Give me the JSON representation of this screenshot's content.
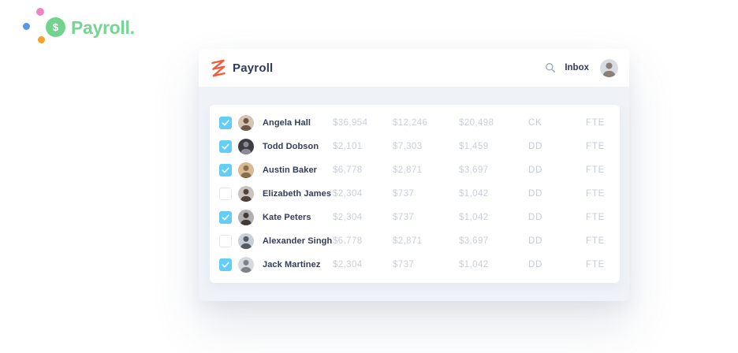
{
  "brand": {
    "name": "Payroll.",
    "dollar_symbol": "$",
    "badge_color": "#72d48c",
    "text_color": "#76d592",
    "dots": [
      {
        "name": "pink-dot",
        "color": "#ef83c3"
      },
      {
        "name": "blue-dot",
        "color": "#5596ea"
      },
      {
        "name": "orange-dot",
        "color": "#f7a128"
      }
    ]
  },
  "app": {
    "header": {
      "title": "Payroll",
      "logo_color": "#f15b40",
      "inbox_label": "Inbox",
      "search_icon_color": "#9ba6b4",
      "avatar_colors": {
        "bg": "#d9dde3",
        "fg": "#8c7f76"
      }
    },
    "table": {
      "rows": [
        {
          "checked": true,
          "name": "Angela Hall",
          "amount1": "$36,954",
          "amount2": "$12,246",
          "amount3": "$20,498",
          "pay_method": "CK",
          "emp_type": "FTE",
          "avatar": {
            "bg": "#d4c4b4",
            "fg": "#6e5645"
          }
        },
        {
          "checked": true,
          "name": "Todd Dobson",
          "amount1": "$2,101",
          "amount2": "$7,303",
          "amount3": "$1,459",
          "pay_method": "DD",
          "emp_type": "FTE",
          "avatar": {
            "bg": "#3f3d44",
            "fg": "#8d8a95"
          }
        },
        {
          "checked": true,
          "name": "Austin Baker",
          "amount1": "$6,778",
          "amount2": "$2,871",
          "amount3": "$3,697",
          "pay_method": "DD",
          "emp_type": "FTE",
          "avatar": {
            "bg": "#d8b992",
            "fg": "#8a6b4a"
          }
        },
        {
          "checked": false,
          "name": "Elizabeth James",
          "amount1": "$2,304",
          "amount2": "$737",
          "amount3": "$1,042",
          "pay_method": "DD",
          "emp_type": "FTE",
          "avatar": {
            "bg": "#c9c2bf",
            "fg": "#51413d"
          }
        },
        {
          "checked": true,
          "name": "Kate Peters",
          "amount1": "$2,304",
          "amount2": "$737",
          "amount3": "$1,042",
          "pay_method": "DD",
          "emp_type": "FTE",
          "avatar": {
            "bg": "#b3afae",
            "fg": "#433a38"
          }
        },
        {
          "checked": false,
          "name": "Alexander Singh",
          "amount1": "$6,778",
          "amount2": "$2,871",
          "amount3": "$3,697",
          "pay_method": "DD",
          "emp_type": "FTE",
          "avatar": {
            "bg": "#c8cfd7",
            "fg": "#555c66"
          }
        },
        {
          "checked": true,
          "name": "Jack Martinez",
          "amount1": "$2,304",
          "amount2": "$737",
          "amount3": "$1,042",
          "pay_method": "DD",
          "emp_type": "FTE",
          "avatar": {
            "bg": "#d6d9dd",
            "fg": "#7e8289"
          }
        }
      ]
    }
  },
  "colors": {
    "card_body": "#eff3f8",
    "panel": "#ffffff",
    "navy_text": "#313b5b",
    "muted_value_text": "#c9cfda",
    "checkbox_checked": "#63cdf5",
    "checkbox_border": "#e5e8ee"
  }
}
